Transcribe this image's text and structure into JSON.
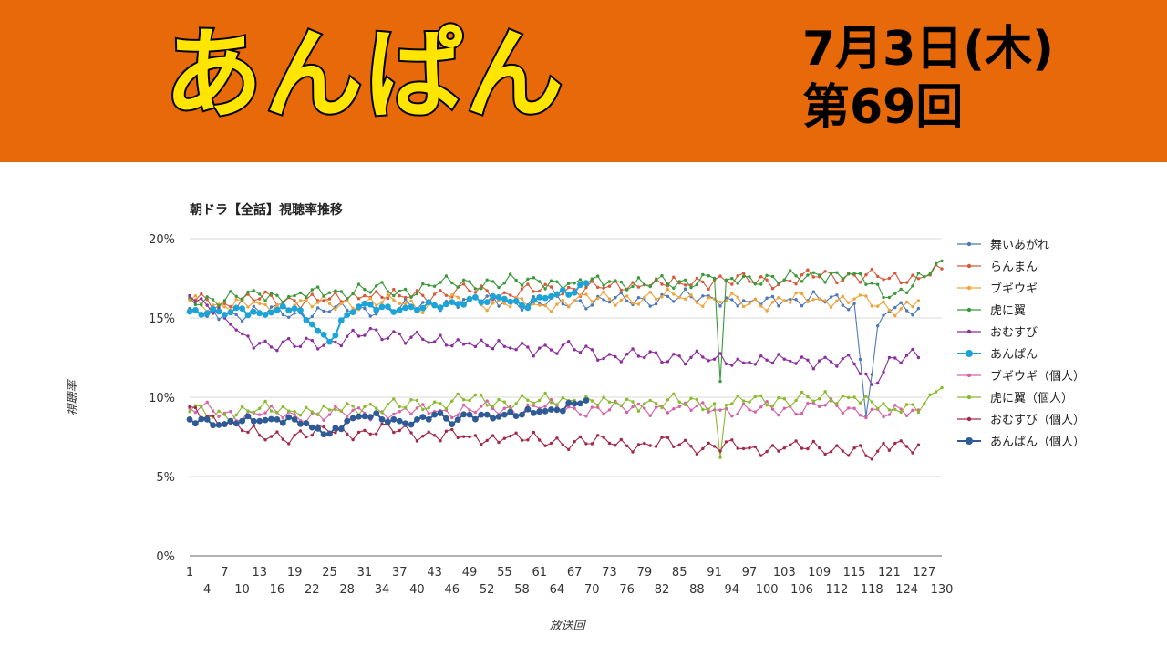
{
  "header": {
    "show_title": "あんぱん",
    "date_line": "7月3日(木)",
    "episode_line": "第69回"
  },
  "colors": {
    "banner": "#E8690A",
    "title_fill": "#FFE500",
    "title_stroke": "#000000"
  },
  "chart_data": {
    "type": "line",
    "title": "朝ドラ【全話】視聴率推移",
    "xlabel": "放送回",
    "ylabel": "視聴率",
    "ylim": [
      0,
      20
    ],
    "xlim": [
      1,
      130
    ],
    "yticks": [
      "0%",
      "5%",
      "10%",
      "15%",
      "20%"
    ],
    "xticks_row1": [
      "1",
      "7",
      "13",
      "19",
      "25",
      "31",
      "37",
      "43",
      "49",
      "55",
      "61",
      "67",
      "73",
      "79",
      "85",
      "91",
      "97",
      "103",
      "109",
      "115",
      "121",
      "127"
    ],
    "xticks_row2": [
      "4",
      "10",
      "16",
      "22",
      "28",
      "34",
      "40",
      "46",
      "52",
      "58",
      "64",
      "70",
      "76",
      "82",
      "88",
      "94",
      "100",
      "106",
      "112",
      "118",
      "124",
      "130"
    ],
    "grid": true,
    "legend_position": "right",
    "series": [
      {
        "name": "舞いあがれ",
        "color": "#4E79B8",
        "marker": "dot",
        "n": 126,
        "anchors": [
          [
            1,
            15.6
          ],
          [
            4,
            15.1
          ],
          [
            7,
            15.2
          ],
          [
            13,
            15.4
          ],
          [
            19,
            15.3
          ],
          [
            25,
            15.4
          ],
          [
            31,
            15.6
          ],
          [
            37,
            15.6
          ],
          [
            43,
            15.8
          ],
          [
            49,
            16.2
          ],
          [
            55,
            16.0
          ],
          [
            61,
            15.9
          ],
          [
            67,
            16.1
          ],
          [
            73,
            16.0
          ],
          [
            79,
            16.2
          ],
          [
            85,
            16.3
          ],
          [
            91,
            16.2
          ],
          [
            97,
            16.0
          ],
          [
            103,
            16.1
          ],
          [
            109,
            16.2
          ],
          [
            115,
            15.9
          ],
          [
            117,
            8.8
          ],
          [
            119,
            14.5
          ],
          [
            121,
            15.4
          ],
          [
            126,
            15.6
          ]
        ]
      },
      {
        "name": "らんまん",
        "color": "#D65A3A",
        "marker": "dot",
        "n": 130,
        "anchors": [
          [
            1,
            16.2
          ],
          [
            7,
            15.9
          ],
          [
            13,
            16.2
          ],
          [
            19,
            16.1
          ],
          [
            25,
            16.2
          ],
          [
            31,
            16.4
          ],
          [
            37,
            16.4
          ],
          [
            43,
            16.5
          ],
          [
            49,
            16.7
          ],
          [
            55,
            16.6
          ],
          [
            61,
            16.7
          ],
          [
            67,
            16.8
          ],
          [
            73,
            17.0
          ],
          [
            79,
            17.1
          ],
          [
            85,
            17.2
          ],
          [
            91,
            17.4
          ],
          [
            97,
            17.3
          ],
          [
            103,
            17.4
          ],
          [
            109,
            17.6
          ],
          [
            115,
            17.7
          ],
          [
            121,
            17.5
          ],
          [
            127,
            17.6
          ],
          [
            130,
            18.1
          ]
        ]
      },
      {
        "name": "ブギウギ",
        "color": "#F0A33A",
        "marker": "dot",
        "n": 126,
        "anchors": [
          [
            1,
            16.1
          ],
          [
            7,
            15.7
          ],
          [
            13,
            15.9
          ],
          [
            19,
            15.8
          ],
          [
            25,
            15.9
          ],
          [
            31,
            16.0
          ],
          [
            37,
            15.9
          ],
          [
            43,
            15.8
          ],
          [
            49,
            16.1
          ],
          [
            55,
            15.9
          ],
          [
            61,
            15.8
          ],
          [
            67,
            16.1
          ],
          [
            73,
            16.2
          ],
          [
            79,
            16.3
          ],
          [
            85,
            16.3
          ],
          [
            91,
            16.2
          ],
          [
            97,
            15.9
          ],
          [
            103,
            16.1
          ],
          [
            109,
            16.2
          ],
          [
            115,
            16.2
          ],
          [
            121,
            15.5
          ],
          [
            126,
            16.1
          ]
        ]
      },
      {
        "name": "虎に翼",
        "color": "#3A9A3A",
        "marker": "dot",
        "n": 130,
        "anchors": [
          [
            1,
            16.3
          ],
          [
            7,
            16.1
          ],
          [
            13,
            16.5
          ],
          [
            19,
            16.4
          ],
          [
            25,
            16.6
          ],
          [
            31,
            16.8
          ],
          [
            37,
            16.7
          ],
          [
            43,
            17.0
          ],
          [
            49,
            17.3
          ],
          [
            55,
            17.2
          ],
          [
            61,
            17.3
          ],
          [
            67,
            17.2
          ],
          [
            73,
            17.3
          ],
          [
            79,
            17.1
          ],
          [
            85,
            17.3
          ],
          [
            91,
            17.5
          ],
          [
            92,
            11.0
          ],
          [
            93,
            17.4
          ],
          [
            97,
            17.6
          ],
          [
            103,
            17.4
          ],
          [
            109,
            17.7
          ],
          [
            115,
            17.8
          ],
          [
            121,
            16.3
          ],
          [
            127,
            17.6
          ],
          [
            130,
            18.6
          ]
        ]
      },
      {
        "name": "おむすび",
        "color": "#8C2E9E",
        "marker": "dot",
        "n": 126,
        "anchors": [
          [
            1,
            16.4
          ],
          [
            4,
            15.8
          ],
          [
            7,
            15.0
          ],
          [
            10,
            14.0
          ],
          [
            13,
            13.4
          ],
          [
            19,
            13.2
          ],
          [
            25,
            13.6
          ],
          [
            31,
            13.9
          ],
          [
            37,
            14.0
          ],
          [
            43,
            13.5
          ],
          [
            49,
            13.4
          ],
          [
            55,
            13.2
          ],
          [
            61,
            13.1
          ],
          [
            67,
            13.0
          ],
          [
            73,
            12.7
          ],
          [
            79,
            12.5
          ],
          [
            85,
            12.6
          ],
          [
            91,
            12.4
          ],
          [
            97,
            12.2
          ],
          [
            103,
            12.4
          ],
          [
            109,
            12.3
          ],
          [
            115,
            12.1
          ],
          [
            118,
            10.8
          ],
          [
            121,
            12.5
          ],
          [
            126,
            12.5
          ]
        ]
      },
      {
        "name": "あんぱん",
        "color": "#1CA3D8",
        "marker": "big",
        "n": 69,
        "anchors": [
          [
            1,
            15.4
          ],
          [
            4,
            15.3
          ],
          [
            7,
            15.2
          ],
          [
            10,
            15.6
          ],
          [
            13,
            15.3
          ],
          [
            16,
            15.5
          ],
          [
            19,
            15.6
          ],
          [
            22,
            14.6
          ],
          [
            25,
            13.5
          ],
          [
            28,
            15.2
          ],
          [
            31,
            15.9
          ],
          [
            34,
            15.7
          ],
          [
            37,
            15.5
          ],
          [
            40,
            15.5
          ],
          [
            43,
            15.8
          ],
          [
            46,
            16.0
          ],
          [
            49,
            16.2
          ],
          [
            52,
            16.0
          ],
          [
            55,
            16.2
          ],
          [
            58,
            15.8
          ],
          [
            61,
            16.3
          ],
          [
            64,
            16.5
          ],
          [
            67,
            16.6
          ],
          [
            69,
            17.2
          ]
        ]
      },
      {
        "name": "ブギウギ（個人）",
        "color": "#D663A8",
        "marker": "dot",
        "n": 126,
        "anchors": [
          [
            1,
            9.3
          ],
          [
            7,
            9.0
          ],
          [
            13,
            8.9
          ],
          [
            19,
            8.9
          ],
          [
            25,
            8.9
          ],
          [
            31,
            9.0
          ],
          [
            37,
            9.1
          ],
          [
            43,
            9.1
          ],
          [
            49,
            9.2
          ],
          [
            55,
            9.3
          ],
          [
            61,
            9.3
          ],
          [
            67,
            9.3
          ],
          [
            73,
            9.2
          ],
          [
            79,
            9.3
          ],
          [
            85,
            9.4
          ],
          [
            91,
            9.2
          ],
          [
            97,
            9.2
          ],
          [
            103,
            9.3
          ],
          [
            109,
            9.4
          ],
          [
            115,
            9.3
          ],
          [
            121,
            8.9
          ],
          [
            126,
            9.2
          ]
        ]
      },
      {
        "name": "虎に翼（個人）",
        "color": "#8BBA2C",
        "marker": "dot",
        "n": 130,
        "anchors": [
          [
            1,
            9.1
          ],
          [
            7,
            8.9
          ],
          [
            13,
            9.3
          ],
          [
            19,
            9.1
          ],
          [
            25,
            9.2
          ],
          [
            31,
            9.4
          ],
          [
            37,
            9.4
          ],
          [
            43,
            9.7
          ],
          [
            49,
            9.8
          ],
          [
            55,
            9.7
          ],
          [
            61,
            9.8
          ],
          [
            67,
            9.8
          ],
          [
            73,
            9.7
          ],
          [
            79,
            9.6
          ],
          [
            85,
            9.7
          ],
          [
            91,
            9.6
          ],
          [
            92,
            6.2
          ],
          [
            93,
            9.5
          ],
          [
            97,
            9.7
          ],
          [
            103,
            9.9
          ],
          [
            109,
            9.9
          ],
          [
            115,
            10.0
          ],
          [
            121,
            9.2
          ],
          [
            127,
            9.6
          ],
          [
            130,
            10.6
          ]
        ]
      },
      {
        "name": "おむすび（個人）",
        "color": "#A3284A",
        "marker": "dot",
        "n": 126,
        "anchors": [
          [
            1,
            9.4
          ],
          [
            4,
            8.8
          ],
          [
            7,
            8.4
          ],
          [
            10,
            7.9
          ],
          [
            13,
            7.6
          ],
          [
            19,
            7.6
          ],
          [
            25,
            7.8
          ],
          [
            31,
            7.9
          ],
          [
            37,
            7.9
          ],
          [
            43,
            7.6
          ],
          [
            49,
            7.5
          ],
          [
            55,
            7.4
          ],
          [
            61,
            7.3
          ],
          [
            67,
            7.2
          ],
          [
            73,
            7.1
          ],
          [
            79,
            7.1
          ],
          [
            85,
            7.0
          ],
          [
            91,
            6.9
          ],
          [
            97,
            6.8
          ],
          [
            103,
            6.8
          ],
          [
            109,
            6.8
          ],
          [
            115,
            6.8
          ],
          [
            118,
            6.1
          ],
          [
            119,
            6.6
          ],
          [
            122,
            7.1
          ],
          [
            126,
            7.0
          ]
        ]
      },
      {
        "name": "あんぱん（個人）",
        "color": "#2E5A96",
        "marker": "big",
        "n": 69,
        "anchors": [
          [
            1,
            8.6
          ],
          [
            4,
            8.6
          ],
          [
            7,
            8.3
          ],
          [
            10,
            8.5
          ],
          [
            13,
            8.5
          ],
          [
            16,
            8.6
          ],
          [
            19,
            8.6
          ],
          [
            22,
            8.1
          ],
          [
            25,
            7.7
          ],
          [
            28,
            8.5
          ],
          [
            31,
            8.8
          ],
          [
            34,
            8.6
          ],
          [
            37,
            8.5
          ],
          [
            40,
            8.6
          ],
          [
            43,
            8.9
          ],
          [
            46,
            8.3
          ],
          [
            49,
            8.9
          ],
          [
            52,
            8.9
          ],
          [
            55,
            8.9
          ],
          [
            58,
            8.9
          ],
          [
            61,
            9.1
          ],
          [
            64,
            9.2
          ],
          [
            67,
            9.6
          ],
          [
            69,
            9.8
          ]
        ]
      }
    ]
  }
}
